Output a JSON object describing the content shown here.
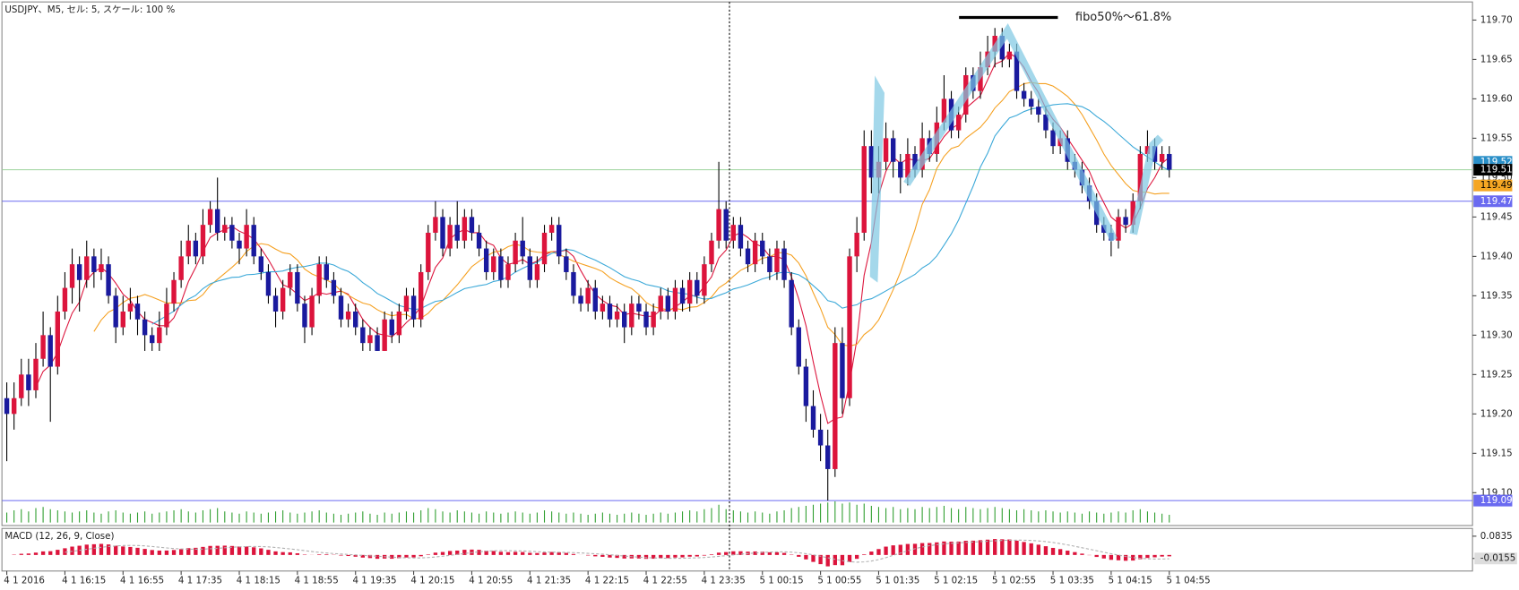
{
  "chart_data": {
    "type": "candlestick",
    "title": "USDJPY、M5, セル: 5, スケール: 100 %",
    "annotation": "fibo50%～61.8%",
    "up_color": "#dc143c",
    "down_color": "#1a1a9e",
    "ylim": [
      119.062,
      119.723
    ],
    "yticks": [
      {
        "value": 119.7,
        "label": "119.70"
      },
      119.65,
      {
        "value": 119.6,
        "label": "119.60"
      },
      119.55,
      {
        "value": 119.5,
        "label": "119.50"
      },
      119.45,
      {
        "value": 119.4,
        "label": "119.40"
      },
      119.35,
      {
        "value": 119.3,
        "label": "119.30"
      },
      119.25,
      {
        "value": 119.2,
        "label": "119.20"
      },
      119.15,
      {
        "value": 119.1,
        "label": "119.10"
      }
    ],
    "categories": [
      "4 1 2016",
      null,
      null,
      null,
      null,
      null,
      null,
      null,
      "4 1 16:15",
      null,
      null,
      null,
      null,
      null,
      null,
      null,
      "4 1 16:55",
      null,
      null,
      null,
      null,
      null,
      null,
      null,
      "4 1 17:35",
      null,
      null,
      null,
      null,
      null,
      null,
      null,
      "4 1 18:15",
      null,
      null,
      null,
      null,
      null,
      null,
      null,
      "4 1 18:55",
      null,
      null,
      null,
      null,
      null,
      null,
      null,
      "4 1 19:35",
      null,
      null,
      null,
      null,
      null,
      null,
      null,
      "4 1 20:15",
      null,
      null,
      null,
      null,
      null,
      null,
      null,
      "4 1 20:55",
      null,
      null,
      null,
      null,
      null,
      null,
      null,
      "4 1 21:35",
      null,
      null,
      null,
      null,
      null,
      null,
      null,
      "4 1 22:15",
      null,
      null,
      null,
      null,
      null,
      null,
      null,
      "4 1 22:55",
      null,
      null,
      null,
      null,
      null,
      null,
      null,
      "4 1 23:35",
      null,
      null,
      null,
      null,
      null,
      null,
      null,
      "5 1 00:15",
      null,
      null,
      null,
      null,
      null,
      null,
      null,
      "5 1 00:55",
      null,
      null,
      null,
      null,
      null,
      null,
      null,
      "5 1 01:35",
      null,
      null,
      null,
      null,
      null,
      null,
      null,
      "5 1 02:15",
      null,
      null,
      null,
      null,
      null,
      null,
      null,
      "5 1 02:55",
      null,
      null,
      null,
      null,
      null,
      null,
      null,
      "5 1 03:35",
      null,
      null,
      null,
      null,
      null,
      null,
      null,
      "5 1 04:15",
      null,
      null,
      null,
      null,
      null,
      null,
      null,
      "5 1 04:55"
    ],
    "ohlc": [
      [
        119.22,
        119.24,
        119.14,
        119.2
      ],
      [
        119.2,
        119.24,
        119.18,
        119.22
      ],
      [
        119.22,
        119.27,
        119.21,
        119.25
      ],
      [
        119.25,
        119.27,
        119.21,
        119.23
      ],
      [
        119.23,
        119.29,
        119.22,
        119.27
      ],
      [
        119.27,
        119.33,
        119.26,
        119.3
      ],
      [
        119.3,
        119.31,
        119.19,
        119.26
      ],
      [
        119.26,
        119.35,
        119.25,
        119.33
      ],
      [
        119.33,
        119.38,
        119.32,
        119.36
      ],
      [
        119.36,
        119.41,
        119.34,
        119.39
      ],
      [
        119.39,
        119.4,
        119.33,
        119.37
      ],
      [
        119.37,
        119.42,
        119.36,
        119.4
      ],
      [
        119.4,
        119.41,
        119.36,
        119.38
      ],
      [
        119.38,
        119.41,
        119.37,
        119.39
      ],
      [
        119.39,
        119.4,
        119.34,
        119.35
      ],
      [
        119.35,
        119.36,
        119.29,
        119.31
      ],
      [
        119.31,
        119.35,
        119.3,
        119.33
      ],
      [
        119.33,
        119.36,
        119.32,
        119.34
      ],
      [
        119.34,
        119.35,
        119.3,
        119.32
      ],
      [
        119.32,
        119.33,
        119.28,
        119.3
      ],
      [
        119.3,
        119.31,
        119.28,
        119.29
      ],
      [
        119.29,
        119.33,
        119.28,
        119.31
      ],
      [
        119.31,
        119.36,
        119.3,
        119.34
      ],
      [
        119.34,
        119.38,
        119.33,
        119.37
      ],
      [
        119.37,
        119.42,
        119.36,
        119.4
      ],
      [
        119.4,
        119.44,
        119.39,
        119.42
      ],
      [
        119.42,
        119.43,
        119.39,
        119.4
      ],
      [
        119.4,
        119.46,
        119.39,
        119.44
      ],
      [
        119.44,
        119.47,
        119.43,
        119.46
      ],
      [
        119.46,
        119.5,
        119.42,
        119.43
      ],
      [
        119.43,
        119.45,
        119.42,
        119.44
      ],
      [
        119.44,
        119.45,
        119.41,
        119.42
      ],
      [
        119.42,
        119.43,
        119.39,
        119.41
      ],
      [
        119.41,
        119.46,
        119.4,
        119.44
      ],
      [
        119.44,
        119.45,
        119.39,
        119.4
      ],
      [
        119.4,
        119.41,
        119.37,
        119.38
      ],
      [
        119.38,
        119.39,
        119.34,
        119.35
      ],
      [
        119.35,
        119.36,
        119.31,
        119.33
      ],
      [
        119.33,
        119.37,
        119.32,
        119.36
      ],
      [
        119.36,
        119.39,
        119.35,
        119.38
      ],
      [
        119.38,
        119.39,
        119.33,
        119.34
      ],
      [
        119.34,
        119.35,
        119.29,
        119.31
      ],
      [
        119.31,
        119.36,
        119.3,
        119.35
      ],
      [
        119.35,
        119.4,
        119.34,
        119.39
      ],
      [
        119.39,
        119.4,
        119.36,
        119.37
      ],
      [
        119.37,
        119.38,
        119.34,
        119.35
      ],
      [
        119.35,
        119.36,
        119.31,
        119.32
      ],
      [
        119.32,
        119.34,
        119.31,
        119.33
      ],
      [
        119.33,
        119.34,
        119.3,
        119.31
      ],
      [
        119.31,
        119.32,
        119.28,
        119.29
      ],
      [
        119.29,
        119.31,
        119.28,
        119.3
      ],
      [
        119.3,
        119.31,
        119.28,
        119.28
      ],
      [
        119.28,
        119.33,
        119.28,
        119.32
      ],
      [
        119.32,
        119.33,
        119.29,
        119.3
      ],
      [
        119.3,
        119.34,
        119.29,
        119.33
      ],
      [
        119.33,
        119.36,
        119.32,
        119.35
      ],
      [
        119.35,
        119.36,
        119.31,
        119.32
      ],
      [
        119.32,
        119.39,
        119.31,
        119.38
      ],
      [
        119.38,
        119.44,
        119.37,
        119.43
      ],
      [
        119.43,
        119.47,
        119.42,
        119.45
      ],
      [
        119.45,
        119.46,
        119.4,
        119.41
      ],
      [
        119.41,
        119.45,
        119.4,
        119.44
      ],
      [
        119.44,
        119.47,
        119.41,
        119.42
      ],
      [
        119.42,
        119.46,
        119.41,
        119.45
      ],
      [
        119.45,
        119.46,
        119.42,
        119.43
      ],
      [
        119.43,
        119.44,
        119.4,
        119.41
      ],
      [
        119.41,
        119.42,
        119.37,
        119.38
      ],
      [
        119.38,
        119.41,
        119.37,
        119.4
      ],
      [
        119.4,
        119.41,
        119.36,
        119.37
      ],
      [
        119.37,
        119.4,
        119.36,
        119.39
      ],
      [
        119.39,
        119.43,
        119.38,
        119.42
      ],
      [
        119.42,
        119.45,
        119.39,
        119.4
      ],
      [
        119.4,
        119.41,
        119.36,
        119.37
      ],
      [
        119.37,
        119.4,
        119.36,
        119.39
      ],
      [
        119.39,
        119.44,
        119.38,
        119.43
      ],
      [
        119.43,
        119.45,
        119.42,
        119.44
      ],
      [
        119.44,
        119.45,
        119.39,
        119.4
      ],
      [
        119.4,
        119.41,
        119.37,
        119.38
      ],
      [
        119.38,
        119.39,
        119.34,
        119.35
      ],
      [
        119.35,
        119.36,
        119.33,
        119.34
      ],
      [
        119.34,
        119.37,
        119.33,
        119.36
      ],
      [
        119.36,
        119.37,
        119.32,
        119.33
      ],
      [
        119.33,
        119.35,
        119.32,
        119.34
      ],
      [
        119.34,
        119.35,
        119.31,
        119.32
      ],
      [
        119.32,
        119.34,
        119.31,
        119.33
      ],
      [
        119.33,
        119.34,
        119.29,
        119.31
      ],
      [
        119.31,
        119.35,
        119.3,
        119.34
      ],
      [
        119.34,
        119.35,
        119.32,
        119.33
      ],
      [
        119.33,
        119.34,
        119.3,
        119.31
      ],
      [
        119.31,
        119.34,
        119.3,
        119.33
      ],
      [
        119.33,
        119.36,
        119.32,
        119.35
      ],
      [
        119.35,
        119.36,
        119.32,
        119.33
      ],
      [
        119.33,
        119.37,
        119.32,
        119.36
      ],
      [
        119.36,
        119.37,
        119.33,
        119.34
      ],
      [
        119.34,
        119.38,
        119.33,
        119.37
      ],
      [
        119.37,
        119.38,
        119.34,
        119.35
      ],
      [
        119.35,
        119.4,
        119.34,
        119.39
      ],
      [
        119.39,
        119.43,
        119.38,
        119.42
      ],
      [
        119.42,
        119.52,
        119.41,
        119.46
      ],
      [
        119.46,
        119.47,
        119.41,
        119.42
      ],
      [
        119.42,
        119.45,
        119.41,
        119.44
      ],
      [
        119.44,
        119.45,
        119.4,
        119.41
      ],
      [
        119.41,
        119.42,
        119.38,
        119.39
      ],
      [
        119.39,
        119.43,
        119.38,
        119.42
      ],
      [
        119.42,
        119.43,
        119.39,
        119.4
      ],
      [
        119.4,
        119.41,
        119.37,
        119.38
      ],
      [
        119.38,
        119.42,
        119.37,
        119.41
      ],
      [
        119.41,
        119.42,
        119.36,
        119.37
      ],
      [
        119.37,
        119.38,
        119.3,
        119.31
      ],
      [
        119.31,
        119.32,
        119.25,
        119.26
      ],
      [
        119.26,
        119.27,
        119.19,
        119.21
      ],
      [
        119.21,
        119.23,
        119.17,
        119.18
      ],
      [
        119.18,
        119.2,
        119.14,
        119.16
      ],
      [
        119.16,
        119.18,
        119.09,
        119.13
      ],
      [
        119.13,
        119.31,
        119.12,
        119.29
      ],
      [
        119.29,
        119.31,
        119.2,
        119.22
      ],
      [
        119.22,
        119.41,
        119.21,
        119.4
      ],
      [
        119.4,
        119.45,
        119.38,
        119.43
      ],
      [
        119.43,
        119.56,
        119.42,
        119.54
      ],
      [
        119.54,
        119.56,
        119.48,
        119.5
      ],
      [
        119.5,
        119.54,
        119.48,
        119.52
      ],
      [
        119.52,
        119.57,
        119.51,
        119.55
      ],
      [
        119.55,
        119.56,
        119.5,
        119.52
      ],
      [
        119.52,
        119.53,
        119.48,
        119.5
      ],
      [
        119.5,
        119.55,
        119.49,
        119.53
      ],
      [
        119.53,
        119.54,
        119.5,
        119.51
      ],
      [
        119.51,
        119.57,
        119.5,
        119.55
      ],
      [
        119.55,
        119.56,
        119.52,
        119.53
      ],
      [
        119.53,
        119.59,
        119.52,
        119.57
      ],
      [
        119.57,
        119.63,
        119.56,
        119.6
      ],
      [
        119.6,
        119.61,
        119.55,
        119.56
      ],
      [
        119.56,
        119.59,
        119.55,
        119.58
      ],
      [
        119.58,
        119.64,
        119.57,
        119.63
      ],
      [
        119.63,
        119.64,
        119.6,
        119.61
      ],
      [
        119.61,
        119.66,
        119.6,
        119.64
      ],
      [
        119.64,
        119.68,
        119.63,
        119.66
      ],
      [
        119.66,
        119.69,
        119.64,
        119.68
      ],
      [
        119.68,
        119.69,
        119.64,
        119.65
      ],
      [
        119.65,
        119.67,
        119.64,
        119.66
      ],
      [
        119.66,
        119.67,
        119.6,
        119.61
      ],
      [
        119.61,
        119.62,
        119.59,
        119.6
      ],
      [
        119.6,
        119.61,
        119.58,
        119.59
      ],
      [
        119.59,
        119.6,
        119.57,
        119.58
      ],
      [
        119.58,
        119.59,
        119.55,
        119.56
      ],
      [
        119.56,
        119.57,
        119.53,
        119.54
      ],
      [
        119.54,
        119.56,
        119.53,
        119.55
      ],
      [
        119.55,
        119.56,
        119.51,
        119.52
      ],
      [
        119.52,
        119.53,
        119.5,
        119.51
      ],
      [
        119.51,
        119.52,
        119.48,
        119.49
      ],
      [
        119.49,
        119.5,
        119.46,
        119.47
      ],
      [
        119.47,
        119.48,
        119.43,
        119.44
      ],
      [
        119.44,
        119.45,
        119.42,
        119.43
      ],
      [
        119.43,
        119.44,
        119.4,
        119.42
      ],
      [
        119.42,
        119.46,
        119.41,
        119.45
      ],
      [
        119.45,
        119.46,
        119.43,
        119.44
      ],
      [
        119.44,
        119.48,
        119.43,
        119.47
      ],
      [
        119.47,
        119.54,
        119.46,
        119.53
      ],
      [
        119.53,
        119.56,
        119.52,
        119.54
      ],
      [
        119.54,
        119.55,
        119.51,
        119.52
      ],
      [
        119.52,
        119.54,
        119.51,
        119.53
      ],
      [
        119.53,
        119.54,
        119.5,
        119.51
      ]
    ],
    "volume": [
      9,
      11,
      12,
      10,
      13,
      14,
      12,
      11,
      10,
      9,
      10,
      11,
      9,
      8,
      10,
      11,
      9,
      8,
      9,
      10,
      8,
      9,
      10,
      11,
      12,
      10,
      9,
      11,
      12,
      13,
      10,
      9,
      8,
      10,
      9,
      8,
      9,
      10,
      11,
      9,
      8,
      9,
      10,
      11,
      9,
      8,
      7,
      8,
      9,
      10,
      8,
      7,
      9,
      8,
      9,
      10,
      9,
      11,
      13,
      12,
      10,
      9,
      11,
      10,
      9,
      8,
      10,
      9,
      8,
      9,
      10,
      9,
      8,
      9,
      11,
      10,
      9,
      8,
      9,
      8,
      7,
      8,
      9,
      8,
      7,
      8,
      9,
      8,
      7,
      8,
      9,
      8,
      9,
      10,
      11,
      10,
      12,
      13,
      16,
      12,
      11,
      10,
      9,
      10,
      9,
      8,
      10,
      11,
      13,
      14,
      15,
      16,
      17,
      18,
      19,
      17,
      18,
      16,
      17,
      15,
      14,
      13,
      14,
      12,
      13,
      12,
      14,
      13,
      14,
      15,
      13,
      12,
      14,
      13,
      12,
      13,
      14,
      13,
      12,
      11,
      12,
      11,
      10,
      11,
      10,
      9,
      10,
      9,
      8,
      10,
      9,
      8,
      9,
      10,
      9,
      11,
      12,
      10,
      9,
      8,
      7
    ],
    "volume_color": "#2e9e2e",
    "moving_averages": [
      {
        "period": 5,
        "color": "#dc143c"
      },
      {
        "period": 13,
        "color": "#f5a020"
      },
      {
        "period": 21,
        "color": "#3aa8d8"
      }
    ],
    "levels": [
      {
        "value": 119.51,
        "color": "#a8d8a8"
      },
      {
        "value": 119.47,
        "color": "#6a6af0"
      },
      {
        "value": 119.09,
        "color": "#6a6af0"
      }
    ],
    "price_tags": [
      {
        "value": 119.52,
        "color": "#2a8fc8"
      },
      {
        "value": 119.51,
        "color": "#000000"
      },
      {
        "value": 119.49,
        "color": "#f5a623"
      },
      {
        "value": 119.47,
        "color": "#6a6af0"
      },
      {
        "value": 119.09,
        "color": "#6a6af0"
      }
    ],
    "macd": {
      "title": "MACD (12, 26, 9, Close)",
      "fast": 12,
      "slow": 26,
      "signal": 9,
      "color": "#dc143c",
      "signal_color": "#b0b0b0",
      "ylim": [
        -0.0715,
        0.118
      ],
      "yticks": [
        0.0835,
        -0.0155
      ]
    }
  }
}
